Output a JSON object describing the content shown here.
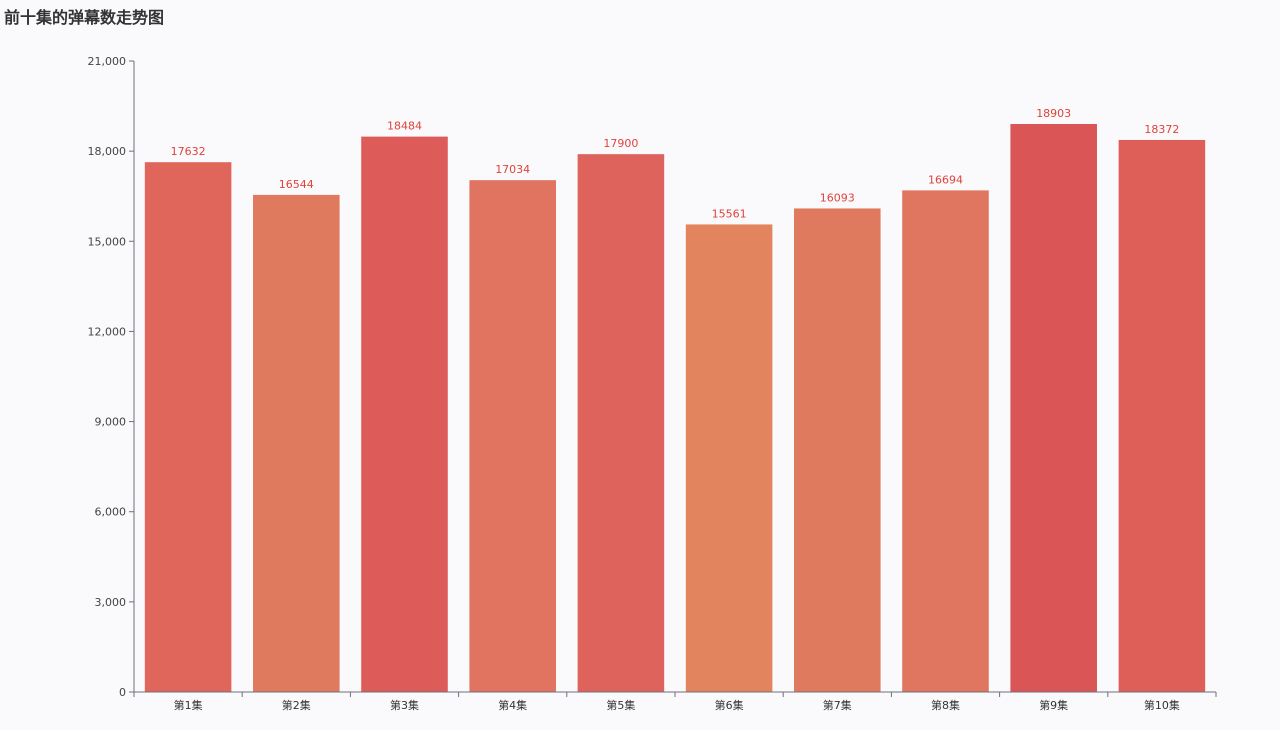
{
  "chart_data": {
    "type": "bar",
    "title": "前十集的弹幕数走势图",
    "xlabel": "",
    "ylabel": "",
    "ylim": [
      0,
      21000
    ],
    "yticks": [
      "0",
      "3,000",
      "6,000",
      "9,000",
      "12,000",
      "15,000",
      "18,000",
      "21,000"
    ],
    "ytick_values": [
      0,
      3000,
      6000,
      9000,
      12000,
      15000,
      18000,
      21000
    ],
    "categories": [
      "第1集",
      "第2集",
      "第3集",
      "第4集",
      "第5集",
      "第6集",
      "第7集",
      "第8集",
      "第9集",
      "第10集"
    ],
    "values": [
      17632,
      16544,
      18484,
      17034,
      17900,
      15561,
      16093,
      16694,
      18903,
      18372
    ],
    "value_labels": [
      "17632",
      "16544",
      "18484",
      "17034",
      "17900",
      "15561",
      "16093",
      "16694",
      "18903",
      "18372"
    ],
    "bar_colors": [
      "#e0655a",
      "#df7a5f",
      "#dd5c59",
      "#e07460",
      "#de635c",
      "#e2845d",
      "#e07a5e",
      "#e07560",
      "#da5656",
      "#de5e58"
    ],
    "data_label_color": "#e0423a",
    "axis_color": "#6e7079",
    "grid": false
  }
}
